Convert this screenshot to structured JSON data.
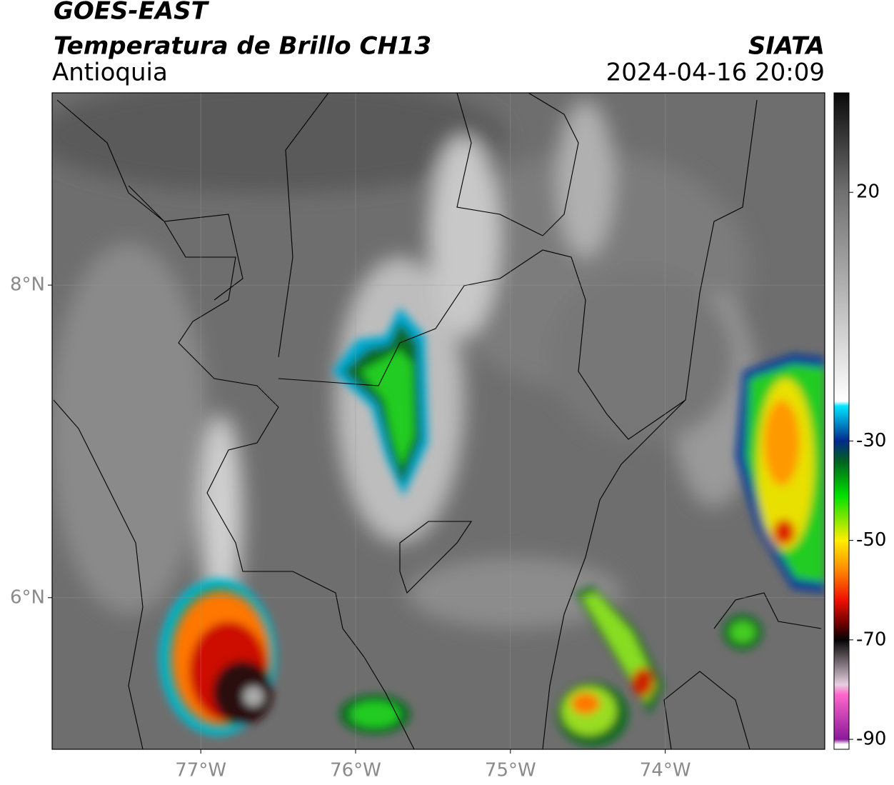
{
  "header": {
    "title": "GOES-EAST",
    "subtitle": "Temperatura de Brillo CH13",
    "region": "Antioquia",
    "source": "SIATA",
    "datetime": "2024-04-16 20:09"
  },
  "map": {
    "xlim": [
      -77.96,
      -72.97
    ],
    "ylim": [
      5.03,
      9.23
    ],
    "xticks": [
      {
        "value": -77,
        "label": "77°W"
      },
      {
        "value": -76,
        "label": "76°W"
      },
      {
        "value": -75,
        "label": "75°W"
      },
      {
        "value": -74,
        "label": "74°W"
      }
    ],
    "yticks": [
      {
        "value": 8,
        "label": "8°N"
      },
      {
        "value": 6,
        "label": "6°N"
      }
    ],
    "grid": true
  },
  "colorbar": {
    "lim": [
      -92,
      40
    ],
    "ticks": [
      20,
      -30,
      -50,
      -70,
      -90
    ],
    "colormap": [
      {
        "value": 40,
        "color": "#0a0a0a"
      },
      {
        "value": 20,
        "color": "#707070"
      },
      {
        "value": -22,
        "color": "#ffffff"
      },
      {
        "value": -23,
        "color": "#00e5ff"
      },
      {
        "value": -30,
        "color": "#002a8c"
      },
      {
        "value": -34,
        "color": "#006020"
      },
      {
        "value": -41,
        "color": "#00e000"
      },
      {
        "value": -50,
        "color": "#ffee00"
      },
      {
        "value": -56,
        "color": "#ff8800"
      },
      {
        "value": -62,
        "color": "#ee1100"
      },
      {
        "value": -67,
        "color": "#660000"
      },
      {
        "value": -70,
        "color": "#050505"
      },
      {
        "value": -79,
        "color": "#e6d0e0"
      },
      {
        "value": -81,
        "color": "#ff66cc"
      },
      {
        "value": -90,
        "color": "#8a1a9a"
      },
      {
        "value": -91,
        "color": "#ffffff"
      }
    ]
  }
}
